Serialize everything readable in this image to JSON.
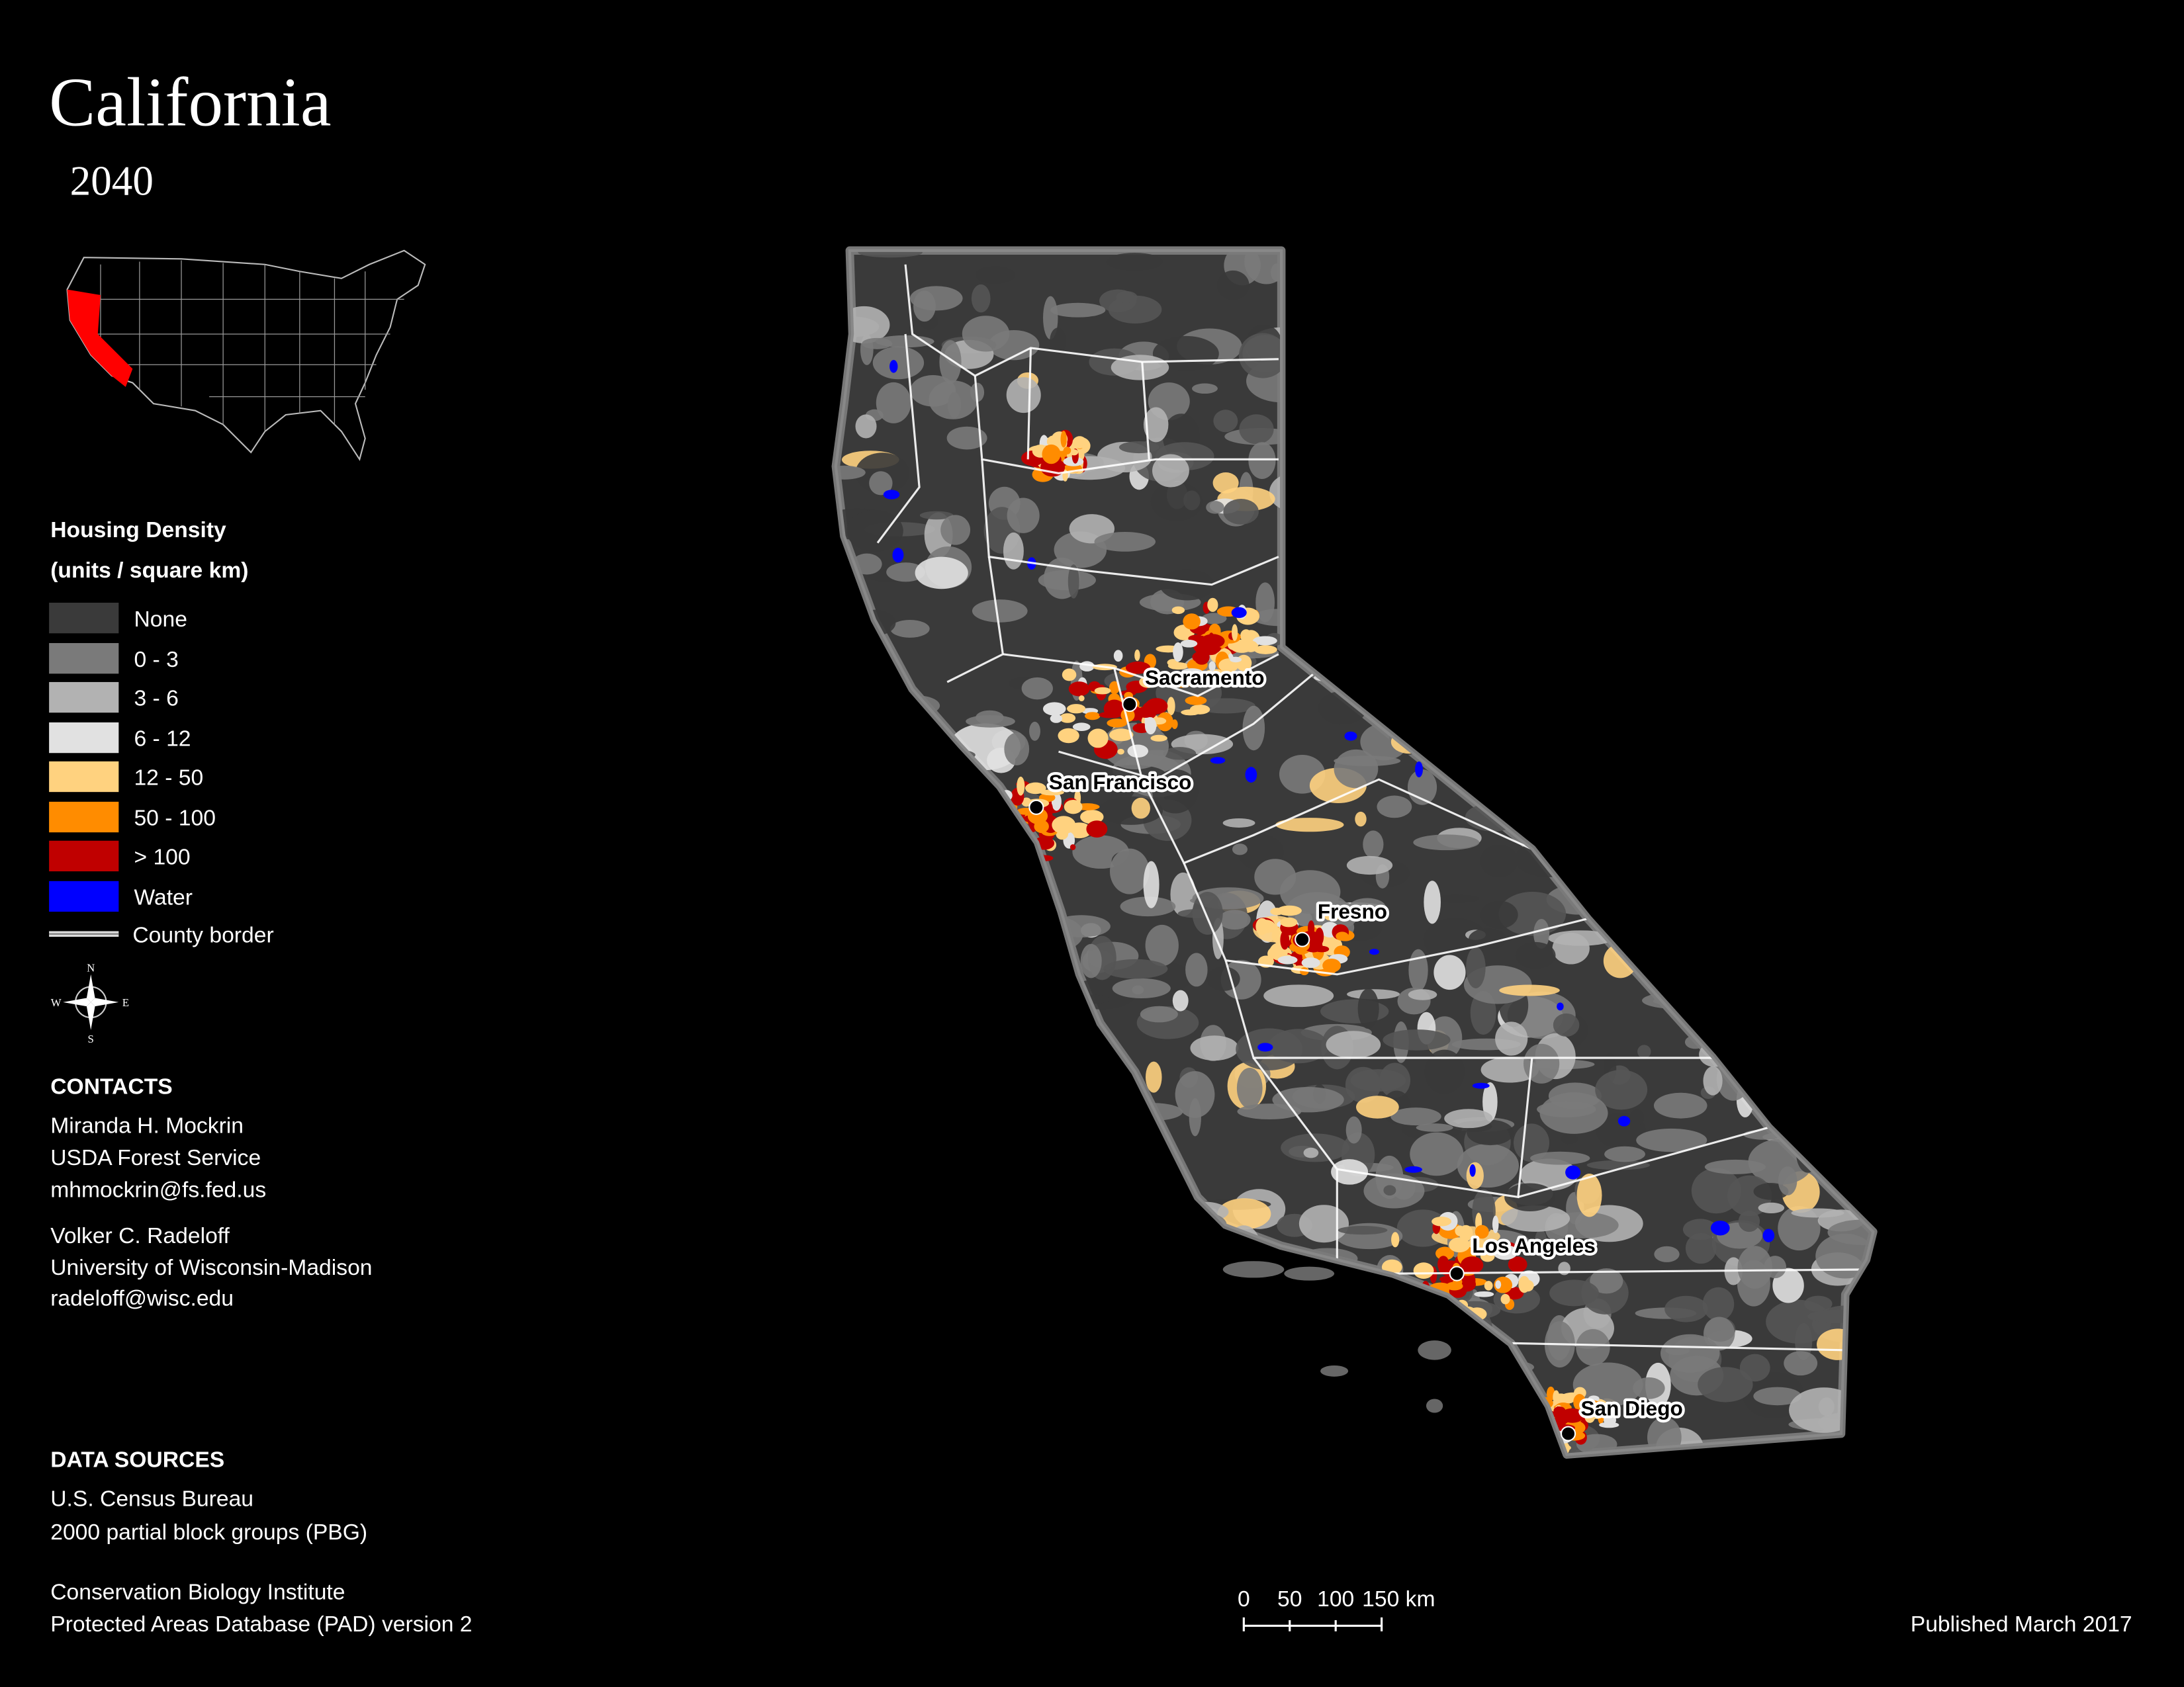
{
  "title": "California",
  "subtitle": "2040",
  "legend": {
    "title": "Housing Density",
    "subtitle": "(units / square km)",
    "items": [
      {
        "label": "None",
        "color": "#3a3a3a"
      },
      {
        "label": "0 - 3",
        "color": "#7a7a7a"
      },
      {
        "label": "3 - 6",
        "color": "#b2b2b2"
      },
      {
        "label": "6 - 12",
        "color": "#e1e1e1"
      },
      {
        "label": "12 - 50",
        "color": "#ffd27f"
      },
      {
        "label": "50 - 100",
        "color": "#ff8c00"
      },
      {
        "label": "> 100",
        "color": "#c00000"
      },
      {
        "label": "Water",
        "color": "#0000ff"
      }
    ],
    "border_label": "County border"
  },
  "compass": [
    "N",
    "E",
    "S",
    "W"
  ],
  "contacts": {
    "heading": "CONTACTS",
    "people": [
      [
        "Miranda H. Mockrin",
        "USDA Forest Service",
        "mhmockrin@fs.fed.us"
      ],
      [
        "Volker C. Radeloff",
        "University of Wisconsin-Madison",
        "radeloff@wisc.edu"
      ]
    ]
  },
  "data_sources": {
    "heading": "DATA SOURCES",
    "entries": [
      [
        "U.S. Census Bureau",
        "2000 partial block groups (PBG)"
      ],
      [
        "Conservation Biology Institute",
        "Protected Areas Database (PAD) version 2"
      ]
    ]
  },
  "scale_bar": {
    "labels": [
      "0",
      "50",
      "100",
      "150 km"
    ]
  },
  "cities": [
    {
      "name": "Sacramento"
    },
    {
      "name": "San Francisco"
    },
    {
      "name": "Fresno"
    },
    {
      "name": "Los Angeles"
    },
    {
      "name": "San Diego"
    }
  ],
  "published": "Published March 2017"
}
